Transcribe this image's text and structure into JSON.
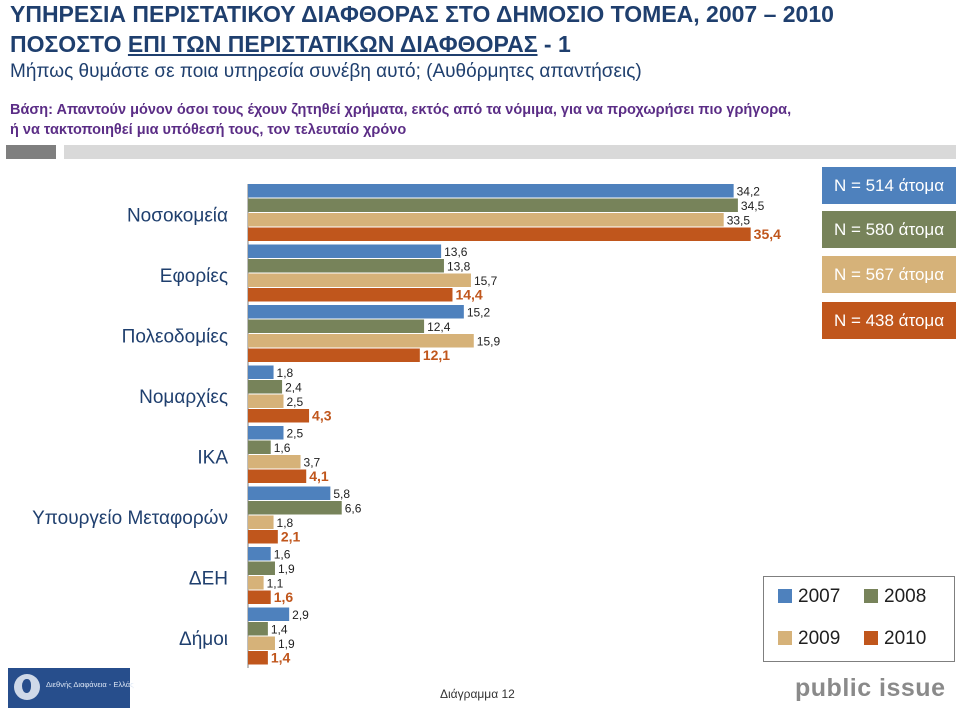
{
  "header": {
    "title_line1": "ΥΠΗΡΕΣΙΑ ΠΕΡΙΣΤΑΤΙΚΟΥ ΔΙΑΦΘΟΡΑΣ ΣΤΟ ΔΗΜΟΣΙΟ ΤΟΜΕΑ, 2007 – 2010",
    "title_line2_prefix": "ΠΟΣΟΣΤΟ ",
    "title_line2_underlined": "ΕΠΙ ΤΩΝ ΠΕΡΙΣΤΑΤΙΚΩΝ ΔΙΑΦΘΟΡΑΣ",
    "title_line2_suffix": " - 1",
    "question": "Μήπως θυμάστε σε ποια υπηρεσία συνέβη αυτό; (Αυθόρμητες απαντήσεις)",
    "basis_line1": "Βάση: Απαντούν μόνον όσοι τους έχουν ζητηθεί χρήματα, εκτός από τα νόμιμα, για να προχωρήσει πιο γρήγορα,",
    "basis_line2": "ή να τακτοποιηθεί μια υπόθεσή τους, τον τελευταίο χρόνο"
  },
  "colors": {
    "2007": "#4e81bd",
    "2008": "#77835a",
    "2009": "#d6b279",
    "2010": "#c0561c",
    "title": "#1f3f6e",
    "basis": "#5b2d86",
    "axis": "#7f7f7f"
  },
  "chart_data": {
    "type": "bar",
    "orientation": "horizontal",
    "categories": [
      "Νοσοκομεία",
      "Εφορίες",
      "Πολεοδομίες",
      "Νομαρχίες",
      "ΙΚΑ",
      "Υπουργείο Μεταφορών",
      "ΔΕΗ",
      "Δήμοι"
    ],
    "series": [
      {
        "name": "2007",
        "color": "#4e81bd",
        "values": [
          34.2,
          13.6,
          15.2,
          1.8,
          2.5,
          5.8,
          1.6,
          2.9
        ],
        "labels": [
          "34,2",
          "13,6",
          "15,2",
          "1,8",
          "2,5",
          "5,8",
          "1,6",
          "2,9"
        ]
      },
      {
        "name": "2008",
        "color": "#77835a",
        "values": [
          34.5,
          13.8,
          12.4,
          2.4,
          1.6,
          6.6,
          1.9,
          1.4
        ],
        "labels": [
          "34,5",
          "13,8",
          "12,4",
          "2,4",
          "1,6",
          "6,6",
          "1,9",
          "1,4"
        ]
      },
      {
        "name": "2009",
        "color": "#d6b279",
        "values": [
          33.5,
          15.7,
          15.9,
          2.5,
          3.7,
          1.8,
          1.1,
          1.9
        ],
        "labels": [
          "33,5",
          "15,7",
          "15,9",
          "2,5",
          "3,7",
          "1,8",
          "1,1",
          "1,9"
        ]
      },
      {
        "name": "2010",
        "color": "#c0561c",
        "values": [
          35.4,
          14.4,
          12.1,
          4.3,
          4.1,
          2.1,
          1.6,
          1.4
        ],
        "labels": [
          "35,4",
          "14,4",
          "12,1",
          "4,3",
          "4,1",
          "2,1",
          "1,6",
          "1,4"
        ]
      }
    ],
    "legend_position": "bottom-right",
    "grid": false
  },
  "sample_sizes": [
    {
      "label": "N = 514 άτομα",
      "series": "2007"
    },
    {
      "label": "N = 580 άτομα",
      "series": "2008"
    },
    {
      "label": "N = 567 άτομα",
      "series": "2009"
    },
    {
      "label": "N = 438 άτομα",
      "series": "2010"
    }
  ],
  "legend": [
    "2007",
    "2008",
    "2009",
    "2010"
  ],
  "footer": {
    "caption": "Διάγραμμα 12",
    "logo_left_text": "Διεθνής Διαφάνεια - Ελλάς",
    "logo_right_text": "public issue"
  }
}
